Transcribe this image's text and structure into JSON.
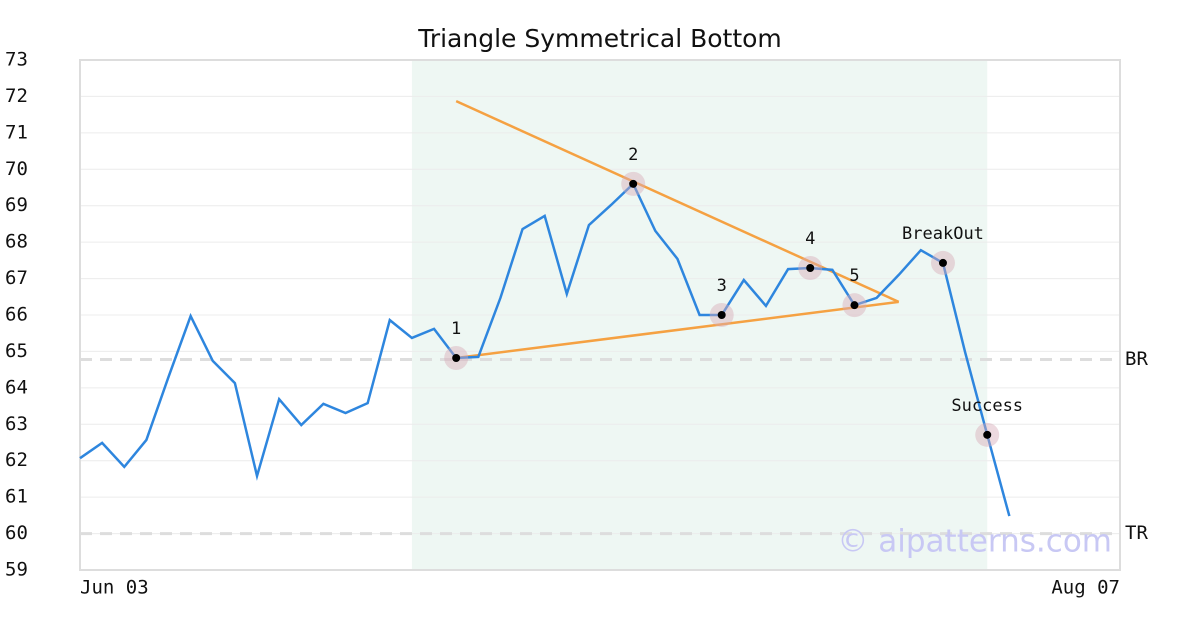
{
  "chart_data": {
    "type": "line",
    "title": "Triangle Symmetrical Bottom",
    "watermark": "© aipatterns.com",
    "categories": [
      "Jun 03",
      null,
      null,
      null,
      null,
      null,
      null,
      null,
      null,
      null,
      null,
      null,
      null,
      null,
      null,
      null,
      null,
      null,
      null,
      null,
      null,
      null,
      null,
      null,
      null,
      null,
      null,
      null,
      null,
      null,
      null,
      null,
      null,
      null,
      null,
      null,
      null,
      null,
      null,
      null,
      null,
      null,
      null,
      null,
      null,
      null,
      null,
      "Aug 07"
    ],
    "series": [
      {
        "color": "#2e86de",
        "values": [
          62.07,
          62.49,
          61.83,
          62.57,
          64.3,
          65.97,
          64.74,
          64.13,
          61.58,
          63.69,
          62.98,
          63.56,
          63.31,
          63.58,
          65.86,
          65.37,
          65.62,
          64.82,
          64.85,
          66.47,
          68.36,
          68.72,
          66.58,
          68.47,
          69.02,
          69.6,
          68.31,
          67.54,
          66.0,
          66.0,
          66.96,
          66.25,
          67.26,
          67.29,
          67.24,
          66.27,
          66.47,
          67.1,
          67.78,
          67.43,
          64.98,
          62.71,
          60.48,
          null,
          null,
          null,
          null,
          null
        ]
      }
    ],
    "ylim": [
      59,
      73
    ],
    "yticks": [
      59,
      60,
      61,
      62,
      63,
      64,
      65,
      66,
      67,
      68,
      69,
      70,
      71,
      72,
      73
    ],
    "grid": true,
    "shaded_range": {
      "from": 15,
      "to": 41,
      "color": "#eef7f3"
    },
    "trend_color": "#f5a142",
    "trendlines": [
      {
        "from": [
          17,
          71.87
        ],
        "to": [
          37,
          66.36
        ]
      },
      {
        "from": [
          17,
          64.82
        ],
        "to": [
          37,
          66.36
        ]
      }
    ],
    "levels": [
      {
        "label": "BR",
        "value": 64.78
      },
      {
        "label": "TR",
        "value": 60.0
      }
    ],
    "level_color": "#dddddd",
    "annotations": [
      {
        "label": "1",
        "index": 17,
        "value": 64.82
      },
      {
        "label": "2",
        "index": 25,
        "value": 69.6
      },
      {
        "label": "3",
        "index": 29,
        "value": 66.0
      },
      {
        "label": "4",
        "index": 33,
        "value": 67.29
      },
      {
        "label": "5",
        "index": 35,
        "value": 66.27
      },
      {
        "label": "BreakOut",
        "index": 39,
        "value": 67.43
      },
      {
        "label": "Success",
        "index": 41,
        "value": 62.71
      }
    ]
  }
}
